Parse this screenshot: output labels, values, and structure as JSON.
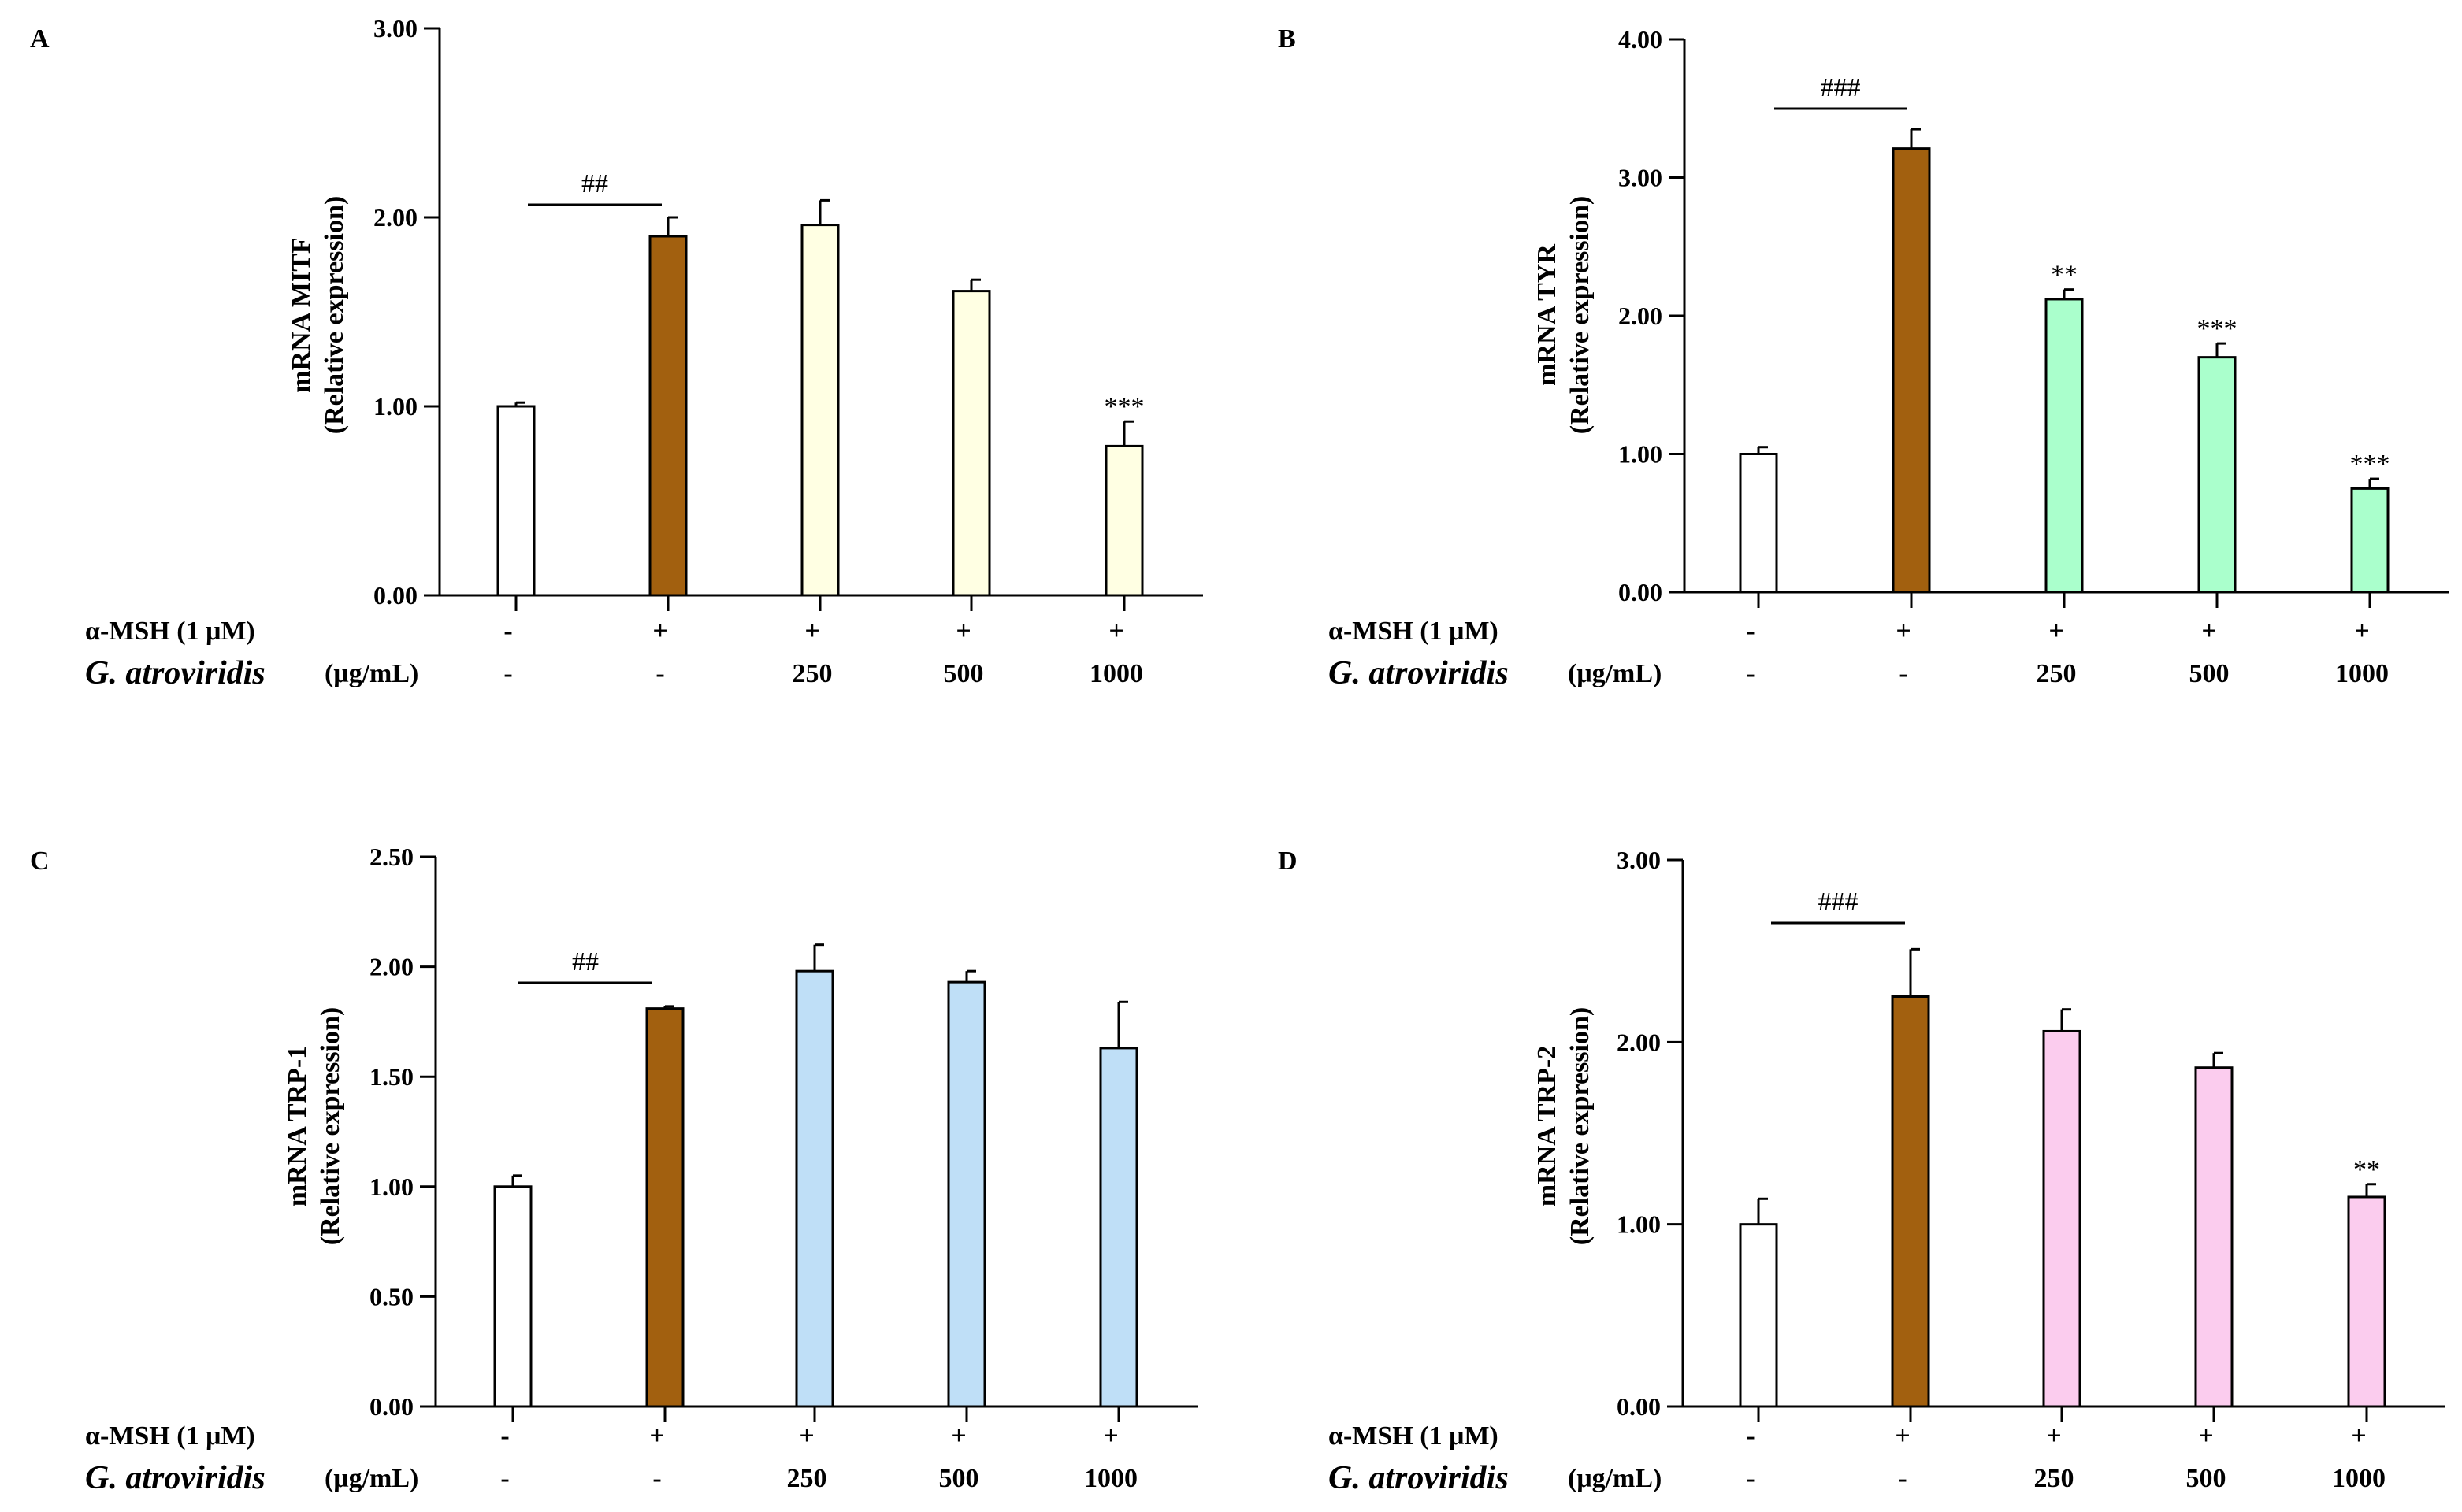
{
  "figure": {
    "row_labels": {
      "msh": "α-MSH (1 μM)",
      "species": "G. atroviridis",
      "unit": "(μg/mL)"
    },
    "msh_values": [
      "-",
      "+",
      "+",
      "+",
      "+"
    ],
    "dose_values": [
      "-",
      "-",
      "250",
      "500",
      "1000"
    ],
    "colors": {
      "control": "#ffffff",
      "msh": "#a2600f",
      "axis": "#000000"
    }
  },
  "chart_data": [
    {
      "panel": "A",
      "type": "bar",
      "ylabel_line1": "mRNA MITF",
      "ylabel_line2": "(Relative expression)",
      "ylim": [
        0,
        3
      ],
      "yticks": [
        "0.00",
        "1.00",
        "2.00",
        "3.00"
      ],
      "ytick_values": [
        0,
        1,
        2,
        3
      ],
      "values": [
        1.0,
        1.9,
        1.96,
        1.61,
        0.79
      ],
      "errors": [
        0.02,
        0.1,
        0.13,
        0.06,
        0.13
      ],
      "significance": [
        "",
        "",
        "",
        "",
        "***"
      ],
      "bracket_label": "##",
      "treatment_color": "#ffffe3"
    },
    {
      "panel": "B",
      "type": "bar",
      "ylabel_line1": "mRNA TYR",
      "ylabel_line2": "(Relative expression)",
      "ylim": [
        0,
        4
      ],
      "yticks": [
        "0.00",
        "1.00",
        "2.00",
        "3.00",
        "4.00"
      ],
      "ytick_values": [
        0,
        1,
        2,
        3,
        4
      ],
      "values": [
        1.0,
        3.21,
        2.12,
        1.7,
        0.75
      ],
      "errors": [
        0.05,
        0.14,
        0.07,
        0.1,
        0.07
      ],
      "significance": [
        "",
        "",
        "**",
        "***",
        "***"
      ],
      "bracket_label": "###",
      "treatment_color": "#aaffcc"
    },
    {
      "panel": "C",
      "type": "bar",
      "ylabel_line1": "mRNA TRP-1",
      "ylabel_line2": "(Relative expression)",
      "ylim": [
        0,
        2.5
      ],
      "yticks": [
        "0.00",
        "0.50",
        "1.00",
        "1.50",
        "2.00",
        "2.50"
      ],
      "ytick_values": [
        0,
        0.5,
        1,
        1.5,
        2,
        2.5
      ],
      "values": [
        1.0,
        1.81,
        1.98,
        1.93,
        1.63
      ],
      "errors": [
        0.05,
        0.01,
        0.12,
        0.05,
        0.21
      ],
      "significance": [
        "",
        "",
        "",
        "",
        ""
      ],
      "bracket_label": "##",
      "treatment_color": "#bfdff7"
    },
    {
      "panel": "D",
      "type": "bar",
      "ylabel_line1": "mRNA TRP-2",
      "ylabel_line2": "(Relative expression)",
      "ylim": [
        0,
        3
      ],
      "yticks": [
        "0.00",
        "1.00",
        "2.00",
        "3.00"
      ],
      "ytick_values": [
        0,
        1,
        2,
        3
      ],
      "values": [
        1.0,
        2.25,
        2.06,
        1.86,
        1.15
      ],
      "errors": [
        0.14,
        0.26,
        0.12,
        0.08,
        0.07
      ],
      "significance": [
        "",
        "",
        "",
        "",
        "**"
      ],
      "bracket_label": "###",
      "treatment_color": "#fbccee"
    }
  ]
}
